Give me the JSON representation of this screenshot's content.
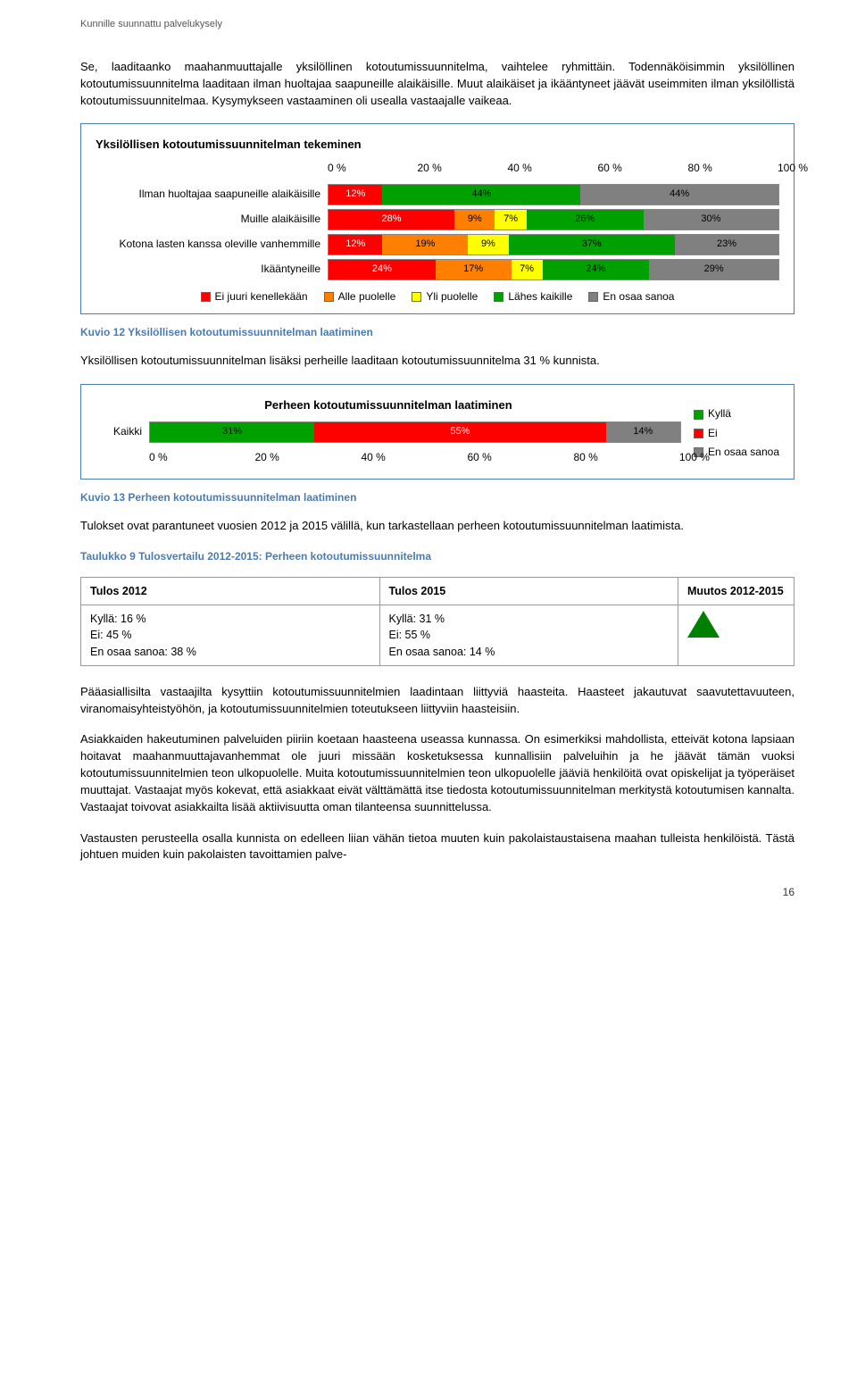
{
  "header": "Kunnille suunnattu palvelukysely",
  "intro_p1": "Se, laaditaanko maahanmuuttajalle yksilöllinen kotoutumissuunnitelma, vaihtelee ryhmittäin. Todennäköisimmin yksilöllinen kotoutumissuunnitelma laaditaan ilman huoltajaa saapuneille alaikäisille. Muut alaikäiset ja ikääntyneet jäävät useimmiten ilman yksilöllistä kotoutumissuunnitelmaa. Kysymykseen vastaaminen oli usealla vastaajalle vaikeaa.",
  "chart1": {
    "title": "Yksilöllisen kotoutumissuunnitelman tekeminen",
    "axis": [
      "0 %",
      "20 %",
      "40 %",
      "60 %",
      "80 %",
      "100 %"
    ],
    "colors": [
      "#ff0000",
      "#ff7f00",
      "#ffff00",
      "#00a000",
      "#808080"
    ],
    "rows": [
      {
        "label": "Ilman huoltajaa saapuneille alaikäisille",
        "values": [
          12,
          0,
          0,
          44,
          44
        ],
        "labels": [
          "12%",
          "",
          "",
          "44%",
          "44%"
        ]
      },
      {
        "label": "Muille alaikäisille",
        "values": [
          28,
          9,
          7,
          26,
          30
        ],
        "labels": [
          "28%",
          "9%",
          "7%",
          "26%",
          "30%"
        ]
      },
      {
        "label": "Kotona lasten kanssa oleville vanhemmille",
        "values": [
          12,
          19,
          9,
          37,
          23
        ],
        "labels": [
          "12%",
          "19%",
          "9%",
          "37%",
          "23%"
        ]
      },
      {
        "label": "Ikääntyneille",
        "values": [
          24,
          17,
          7,
          24,
          29
        ],
        "labels": [
          "24%",
          "17%",
          "7%",
          "24%",
          "29%"
        ]
      }
    ],
    "legend": [
      "Ei juuri kenellekään",
      "Alle puolelle",
      "Yli puolelle",
      "Lähes kaikille",
      "En osaa sanoa"
    ]
  },
  "caption1": "Kuvio 12 Yksilöllisen kotoutumissuunnitelman laatiminen",
  "mid_p1": "Yksilöllisen kotoutumissuunnitelman lisäksi perheille laaditaan kotoutumissuunnitelma 31 % kunnista.",
  "chart2": {
    "title": "Perheen kotoutumissuunnitelman laatiminen",
    "axis": [
      "0 %",
      "20 %",
      "40 %",
      "60 %",
      "80 %",
      "100 %"
    ],
    "row_label": "Kaikki",
    "colors": [
      "#00a000",
      "#ff0000",
      "#808080"
    ],
    "values": [
      31,
      55,
      14
    ],
    "labels": [
      "31%",
      "55%",
      "14%"
    ],
    "legend": [
      "Kyllä",
      "Ei",
      "En osaa sanoa"
    ]
  },
  "caption2": "Kuvio 13 Perheen kotoutumissuunnitelman laatiminen",
  "mid_p2": "Tulokset ovat parantuneet vuosien 2012 ja 2015 välillä, kun tarkastellaan perheen kotoutumissuunnitelman laatimista.",
  "table_caption": "Taulukko 9 Tulosvertailu 2012-2015: Perheen kotoutumissuunnitelma",
  "table": {
    "headers": [
      "Tulos 2012",
      "Tulos 2015",
      "Muutos 2012-2015"
    ],
    "col1": [
      "Kyllä: 16 %",
      "Ei: 45 %",
      "En osaa sanoa: 38 %"
    ],
    "col2": [
      "Kyllä: 31 %",
      "Ei: 55 %",
      "En osaa sanoa: 14 %"
    ]
  },
  "para_a": "Pääasiallisilta vastaajilta kysyttiin kotoutumissuunnitelmien laadintaan liittyviä haasteita. Haasteet jakautuvat saavutettavuuteen, viranomaisyhteistyöhön, ja kotoutumissuunnitelmien toteutukseen liittyviin haasteisiin.",
  "para_b": "Asiakkaiden hakeutuminen palveluiden piiriin koetaan haasteena useassa kunnassa. On esimerkiksi mahdollista, etteivät kotona lapsiaan hoitavat maahanmuuttajavanhemmat ole juuri missään kosketuksessa kunnallisiin palveluihin ja he jäävät tämän vuoksi kotoutumissuunnitelmien teon ulkopuolelle. Muita kotoutumissuunnitelmien teon ulkopuolelle jääviä henkilöitä ovat opiskelijat ja työperäiset muuttajat. Vastaajat myös kokevat, että asiakkaat eivät välttämättä itse tiedosta kotoutumissuunnitelman merkitystä kotoutumisen kannalta. Vastaajat toivovat asiakkailta lisää aktiivisuutta oman tilanteensa suunnittelussa.",
  "para_c": "Vastausten perusteella osalla kunnista on edelleen liian vähän tietoa muuten kuin pakolaistaustaisena maahan tulleista henkilöistä. Tästä johtuen muiden kuin pakolaisten tavoittamien palve-",
  "page_num": "16"
}
